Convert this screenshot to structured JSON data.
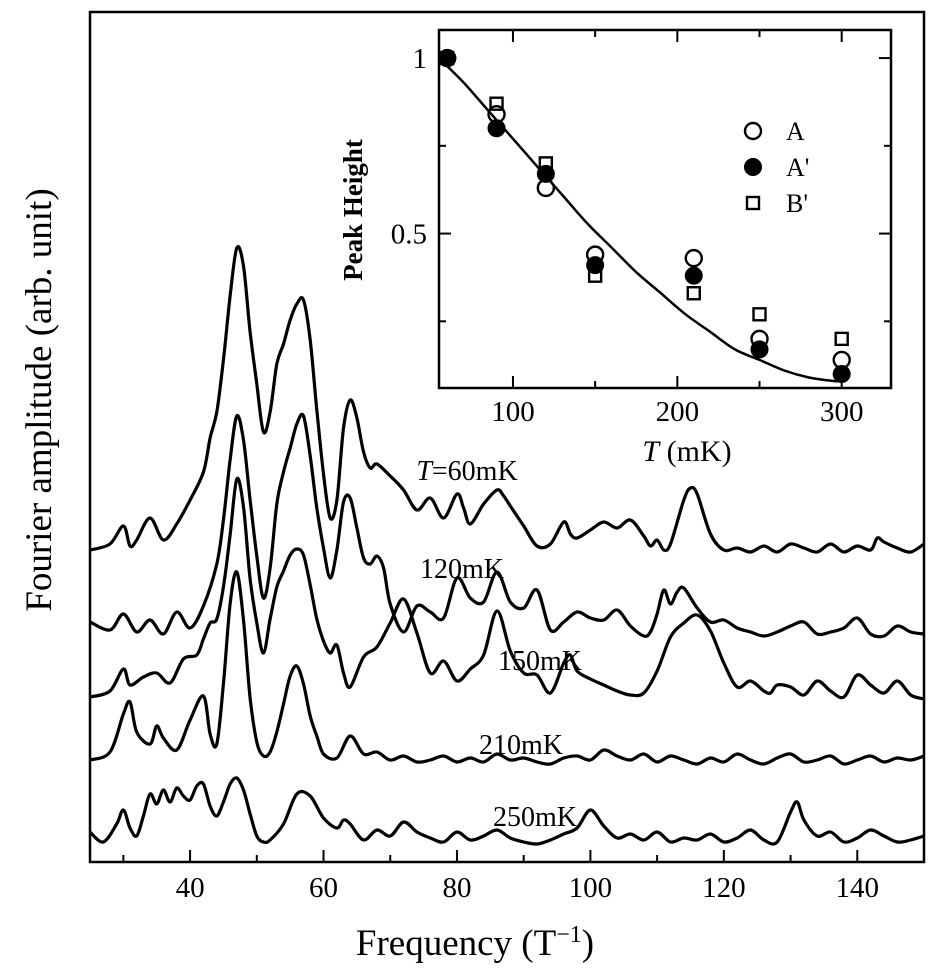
{
  "chart_data": [
    {
      "type": "line",
      "xlabel": "Frequency (T",
      "xlabel_sup": "−1",
      "xlabel_close": ")",
      "ylabel": "Fourier amplitude (arb. unit)",
      "xlim": [
        25,
        150
      ],
      "xticks": [
        40,
        60,
        80,
        100,
        120,
        140
      ],
      "y_tick_labels": false,
      "series": [
        {
          "name": "T=60mK",
          "label_prefix": "T",
          "label_rest": "=60mK",
          "x": [
            25,
            28,
            30,
            31,
            32,
            34,
            36,
            38,
            40,
            42,
            43,
            44,
            45,
            46,
            47,
            48,
            49,
            50,
            51,
            52,
            53,
            54,
            55,
            56,
            57,
            58,
            59,
            60,
            61,
            62,
            63,
            64,
            65,
            66,
            67,
            68,
            70,
            72,
            74,
            76,
            78,
            80,
            81,
            82,
            84,
            86,
            87,
            88,
            90,
            92,
            94,
            96,
            97,
            98,
            100,
            102,
            104,
            106,
            108,
            109,
            110,
            111,
            112,
            114,
            115,
            116,
            118,
            120,
            122,
            124,
            126,
            128,
            130,
            132,
            134,
            136,
            138,
            140,
            142,
            143,
            144,
            146,
            148,
            150
          ],
          "y": [
            0.3,
            0.6,
            1.5,
            0.5,
            0.8,
            1.9,
            0.8,
            1.6,
            2.8,
            4.2,
            5.9,
            7.2,
            9.8,
            13.0,
            15.4,
            14.5,
            11.2,
            8.6,
            6.2,
            7.2,
            9.6,
            10.6,
            11.8,
            12.6,
            12.8,
            10.8,
            7.3,
            4.1,
            1.9,
            2.8,
            6.4,
            7.8,
            6.9,
            5.2,
            4.4,
            4.6,
            4.0,
            3.3,
            2.3,
            2.9,
            1.9,
            3.1,
            2.4,
            1.6,
            2.6,
            3.3,
            3.0,
            2.5,
            1.5,
            0.5,
            0.6,
            1.7,
            1.1,
            0.9,
            1.3,
            1.7,
            1.4,
            1.8,
            1.0,
            0.5,
            0.8,
            0.3,
            0.6,
            2.8,
            3.4,
            3.1,
            1.1,
            0.3,
            0.4,
            0.2,
            0.5,
            0.2,
            0.6,
            0.4,
            0.2,
            0.6,
            0.2,
            0.5,
            0.3,
            0.9,
            0.7,
            0.4,
            0.2,
            0.6
          ]
        },
        {
          "name": "120mK",
          "label_prefix": "",
          "label_rest": "120mK",
          "x": [
            25,
            28,
            30,
            32,
            34,
            36,
            38,
            40,
            42,
            44,
            45,
            46,
            47,
            48,
            49,
            50,
            51,
            52,
            53,
            54,
            55,
            56,
            57,
            58,
            59,
            60,
            61,
            62,
            63,
            64,
            65,
            66,
            67,
            68,
            69,
            70,
            72,
            74,
            76,
            78,
            80,
            82,
            84,
            86,
            88,
            90,
            92,
            94,
            96,
            98,
            100,
            102,
            104,
            106,
            108,
            109,
            110,
            111,
            112,
            113,
            114,
            116,
            118,
            120,
            122,
            124,
            126,
            128,
            130,
            132,
            134,
            136,
            138,
            140,
            142,
            144,
            146,
            148,
            150
          ],
          "y": [
            0.9,
            0.5,
            1.3,
            0.4,
            1.0,
            0.3,
            1.4,
            0.6,
            1.7,
            3.8,
            6.0,
            9.0,
            11.2,
            10.0,
            7.0,
            4.2,
            2.1,
            3.6,
            6.8,
            8.4,
            9.6,
            10.8,
            11.2,
            9.2,
            6.6,
            4.6,
            3.1,
            4.5,
            6.9,
            7.1,
            5.6,
            4.1,
            3.8,
            4.2,
            3.6,
            1.8,
            0.4,
            1.7,
            1.4,
            1.1,
            3.1,
            2.1,
            1.9,
            3.4,
            1.9,
            1.6,
            2.5,
            0.5,
            0.9,
            1.4,
            1.1,
            1.0,
            1.5,
            0.7,
            0.2,
            0.4,
            1.3,
            2.5,
            1.8,
            2.4,
            2.6,
            1.6,
            0.9,
            1.0,
            0.6,
            0.4,
            0.2,
            0.4,
            0.7,
            0.9,
            0.3,
            0.4,
            0.6,
            1.1,
            0.3,
            0.2,
            0.7,
            0.4,
            0.3
          ]
        },
        {
          "name": "150mK",
          "label_prefix": "",
          "label_rest": "150mK",
          "x": [
            25,
            28,
            30,
            31,
            33,
            35,
            37,
            39,
            41,
            42,
            43,
            44,
            45,
            46,
            47,
            48,
            49,
            50,
            51,
            52,
            53,
            54,
            55,
            56,
            57,
            58,
            59,
            60,
            61,
            62,
            63,
            64,
            66,
            68,
            70,
            72,
            74,
            76,
            78,
            80,
            82,
            84,
            86,
            88,
            90,
            92,
            94,
            96,
            97,
            98,
            100,
            102,
            104,
            106,
            108,
            110,
            112,
            114,
            116,
            118,
            120,
            122,
            124,
            126,
            127,
            128,
            130,
            132,
            134,
            136,
            138,
            140,
            142,
            144,
            146,
            148,
            150
          ],
          "y": [
            0.3,
            0.6,
            1.7,
            0.9,
            1.3,
            1.5,
            1.0,
            2.2,
            2.4,
            3.2,
            4.0,
            4.2,
            5.8,
            8.4,
            11.2,
            9.8,
            6.2,
            4.0,
            2.5,
            4.2,
            5.8,
            6.6,
            7.4,
            7.7,
            7.4,
            5.9,
            4.2,
            3.1,
            2.5,
            2.9,
            1.5,
            0.8,
            2.3,
            2.8,
            4.0,
            5.2,
            3.5,
            1.5,
            2.1,
            1.1,
            1.7,
            2.4,
            4.6,
            2.6,
            1.5,
            1.4,
            0.5,
            2.0,
            2.4,
            1.6,
            1.2,
            0.9,
            0.6,
            0.4,
            0.5,
            1.6,
            3.3,
            4.0,
            4.4,
            3.6,
            2.0,
            0.8,
            1.1,
            0.6,
            0.5,
            0.9,
            0.8,
            0.4,
            1.1,
            0.6,
            0.3,
            1.4,
            0.9,
            0.5,
            1.1,
            0.4,
            0.2
          ]
        },
        {
          "name": "210mK",
          "label_prefix": "",
          "label_rest": "210mK",
          "x": [
            25,
            28,
            30,
            31,
            32,
            34,
            35,
            36,
            38,
            40,
            42,
            43,
            44,
            45,
            46,
            47,
            48,
            49,
            50,
            51,
            52,
            53,
            54,
            55,
            56,
            57,
            58,
            59,
            60,
            62,
            64,
            66,
            68,
            70,
            72,
            74,
            76,
            78,
            80,
            82,
            84,
            86,
            88,
            90,
            92,
            94,
            96,
            98,
            100,
            102,
            104,
            106,
            108,
            110,
            112,
            114,
            116,
            118,
            120,
            122,
            124,
            126,
            128,
            130,
            132,
            134,
            136,
            138,
            140,
            142,
            144,
            146,
            148,
            150
          ],
          "y": [
            0.4,
            0.8,
            2.7,
            3.3,
            1.8,
            1.2,
            2.1,
            1.5,
            0.9,
            2.4,
            3.6,
            1.7,
            1.2,
            4.2,
            8.2,
            9.8,
            7.4,
            3.5,
            1.3,
            0.6,
            0.8,
            1.8,
            3.2,
            4.6,
            5.1,
            4.2,
            2.6,
            1.6,
            0.7,
            0.5,
            1.6,
            0.7,
            0.8,
            0.4,
            0.6,
            0.3,
            0.4,
            0.6,
            0.3,
            0.5,
            0.3,
            0.7,
            0.4,
            0.5,
            0.3,
            0.2,
            0.5,
            0.6,
            0.4,
            0.9,
            0.6,
            0.4,
            0.7,
            0.3,
            0.6,
            0.4,
            0.2,
            0.5,
            0.3,
            0.7,
            0.4,
            0.2,
            0.5,
            0.7,
            0.3,
            0.4,
            0.6,
            0.2,
            0.4,
            0.6,
            0.3,
            0.5,
            0.4,
            0.6
          ]
        },
        {
          "name": "250mK",
          "label_prefix": "",
          "label_rest": "250mK",
          "x": [
            25,
            27,
            29,
            30,
            31,
            32,
            33,
            34,
            35,
            36,
            37,
            38,
            39,
            40,
            41,
            42,
            43,
            44,
            45,
            46,
            47,
            48,
            49,
            50,
            51,
            52,
            54,
            56,
            58,
            60,
            62,
            63,
            64,
            66,
            68,
            70,
            72,
            74,
            76,
            78,
            80,
            82,
            84,
            86,
            88,
            90,
            92,
            94,
            96,
            98,
            100,
            102,
            104,
            106,
            108,
            110,
            112,
            114,
            116,
            118,
            120,
            122,
            124,
            126,
            128,
            130,
            131,
            132,
            134,
            136,
            138,
            140,
            142,
            144,
            146,
            148,
            150
          ],
          "y": [
            0.8,
            0.3,
            1.2,
            1.9,
            1.0,
            0.6,
            1.6,
            2.7,
            2.2,
            2.9,
            2.3,
            3.0,
            2.6,
            2.4,
            3.1,
            3.2,
            2.1,
            1.6,
            2.3,
            3.2,
            3.5,
            2.9,
            1.7,
            0.6,
            0.3,
            0.4,
            1.2,
            2.7,
            2.6,
            1.5,
            1.0,
            1.4,
            1.2,
            0.4,
            0.9,
            0.6,
            1.3,
            0.8,
            0.5,
            0.3,
            0.8,
            0.4,
            0.6,
            0.9,
            0.5,
            0.3,
            0.2,
            0.4,
            0.7,
            1.0,
            1.9,
            1.1,
            0.5,
            0.7,
            0.4,
            0.8,
            0.3,
            0.5,
            0.4,
            0.7,
            0.3,
            0.5,
            0.9,
            0.4,
            0.3,
            1.8,
            2.3,
            1.4,
            0.6,
            0.8,
            0.3,
            0.5,
            0.9,
            0.6,
            0.3,
            0.4,
            0.6
          ]
        }
      ]
    },
    {
      "type": "scatter",
      "xlabel_italic": "T",
      "xlabel_rest": " (mK)",
      "ylabel": "Peak Height",
      "xlim": [
        55,
        330
      ],
      "ylim": [
        0.06,
        1.08
      ],
      "xticks": [
        100,
        200,
        300
      ],
      "yticks": [
        0.5,
        1
      ],
      "ytick_labels": [
        "0.5",
        "1"
      ],
      "legend_position": "upper-right",
      "x": [
        60,
        90,
        120,
        150,
        210,
        250,
        300
      ],
      "series": [
        {
          "name": "A",
          "marker": "open-circle",
          "values": [
            1.0,
            0.84,
            0.63,
            0.44,
            0.43,
            0.2,
            0.14
          ]
        },
        {
          "name": "A'",
          "marker": "filled-circle",
          "values": [
            1.0,
            0.8,
            0.67,
            0.41,
            0.38,
            0.17,
            0.1
          ]
        },
        {
          "name": "B'",
          "marker": "open-square",
          "values": [
            1.0,
            0.87,
            0.7,
            0.38,
            0.33,
            0.27,
            0.2
          ]
        }
      ],
      "fit_curve": {
        "x": [
          55,
          70,
          85,
          100,
          115,
          130,
          145,
          160,
          175,
          190,
          205,
          220,
          235,
          250,
          265,
          280,
          295,
          300
        ],
        "y": [
          1.0,
          0.93,
          0.85,
          0.77,
          0.69,
          0.61,
          0.53,
          0.46,
          0.39,
          0.33,
          0.27,
          0.22,
          0.17,
          0.14,
          0.11,
          0.09,
          0.08,
          0.08
        ]
      }
    }
  ]
}
